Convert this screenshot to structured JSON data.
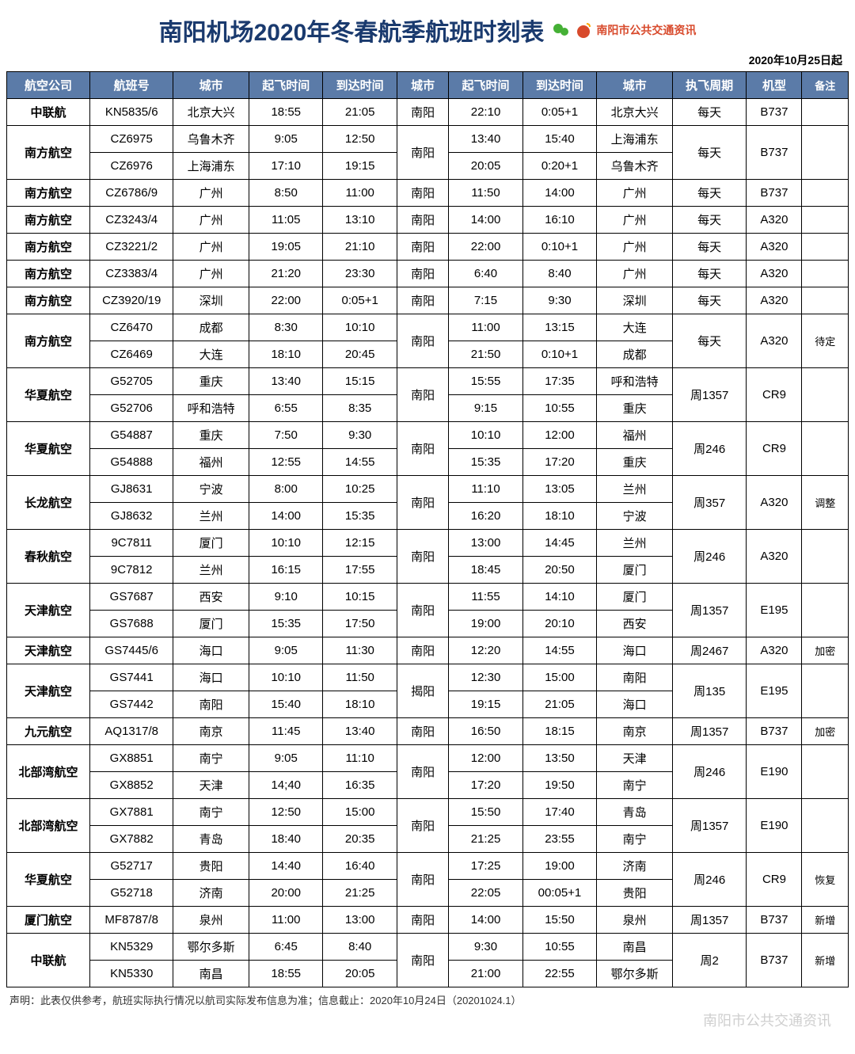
{
  "title": "南阳机场2020年冬春航季航班时刻表",
  "subtitle": "2020年10月25日起",
  "logo_text": "南阳市公共交通资讯",
  "footnote": "声明：此表仅供参考，航班实际执行情况以航司实际发布信息为准；信息截止：2020年10月24日（20201024.1）",
  "watermark": "南阳市公共交通资讯",
  "colors": {
    "header_bg": "#5b7ba8",
    "header_fg": "#ffffff",
    "title_fg": "#1a3a6e",
    "logo_fg": "#d84a2c",
    "border": "#000000"
  },
  "headers": [
    "航空公司",
    "航班号",
    "城市",
    "起飞时间",
    "到达时间",
    "城市",
    "起飞时间",
    "到达时间",
    "城市",
    "执飞周期",
    "机型",
    "备注"
  ],
  "groups": [
    {
      "airline": "中联航",
      "rows": [
        {
          "flight": "KN5835/6",
          "c1": "北京大兴",
          "d1": "18:55",
          "a1": "21:05",
          "d2": "22:10",
          "a2": "0:05+1",
          "c2": "北京大兴"
        }
      ],
      "hub": "南阳",
      "freq": "每天",
      "plane": "B737",
      "note": ""
    },
    {
      "airline": "南方航空",
      "rows": [
        {
          "flight": "CZ6975",
          "c1": "乌鲁木齐",
          "d1": "9:05",
          "a1": "12:50",
          "d2": "13:40",
          "a2": "15:40",
          "c2": "上海浦东"
        },
        {
          "flight": "CZ6976",
          "c1": "上海浦东",
          "d1": "17:10",
          "a1": "19:15",
          "d2": "20:05",
          "a2": "0:20+1",
          "c2": "乌鲁木齐"
        }
      ],
      "hub": "南阳",
      "freq": "每天",
      "plane": "B737",
      "note": ""
    },
    {
      "airline": "南方航空",
      "rows": [
        {
          "flight": "CZ6786/9",
          "c1": "广州",
          "d1": "8:50",
          "a1": "11:00",
          "d2": "11:50",
          "a2": "14:00",
          "c2": "广州"
        }
      ],
      "hub": "南阳",
      "freq": "每天",
      "plane": "B737",
      "note": ""
    },
    {
      "airline": "南方航空",
      "rows": [
        {
          "flight": "CZ3243/4",
          "c1": "广州",
          "d1": "11:05",
          "a1": "13:10",
          "d2": "14:00",
          "a2": "16:10",
          "c2": "广州"
        }
      ],
      "hub": "南阳",
      "freq": "每天",
      "plane": "A320",
      "note": ""
    },
    {
      "airline": "南方航空",
      "rows": [
        {
          "flight": "CZ3221/2",
          "c1": "广州",
          "d1": "19:05",
          "a1": "21:10",
          "d2": "22:00",
          "a2": "0:10+1",
          "c2": "广州"
        }
      ],
      "hub": "南阳",
      "freq": "每天",
      "plane": "A320",
      "note": ""
    },
    {
      "airline": "南方航空",
      "rows": [
        {
          "flight": "CZ3383/4",
          "c1": "广州",
          "d1": "21:20",
          "a1": "23:30",
          "d2": "6:40",
          "a2": "8:40",
          "c2": "广州"
        }
      ],
      "hub": "南阳",
      "freq": "每天",
      "plane": "A320",
      "note": ""
    },
    {
      "airline": "南方航空",
      "rows": [
        {
          "flight": "CZ3920/19",
          "c1": "深圳",
          "d1": "22:00",
          "a1": "0:05+1",
          "d2": "7:15",
          "a2": "9:30",
          "c2": "深圳"
        }
      ],
      "hub": "南阳",
      "freq": "每天",
      "plane": "A320",
      "note": ""
    },
    {
      "airline": "南方航空",
      "rows": [
        {
          "flight": "CZ6470",
          "c1": "成都",
          "d1": "8:30",
          "a1": "10:10",
          "d2": "11:00",
          "a2": "13:15",
          "c2": "大连"
        },
        {
          "flight": "CZ6469",
          "c1": "大连",
          "d1": "18:10",
          "a1": "20:45",
          "d2": "21:50",
          "a2": "0:10+1",
          "c2": "成都"
        }
      ],
      "hub": "南阳",
      "freq": "每天",
      "plane": "A320",
      "note": "待定"
    },
    {
      "airline": "华夏航空",
      "rows": [
        {
          "flight": "G52705",
          "c1": "重庆",
          "d1": "13:40",
          "a1": "15:15",
          "d2": "15:55",
          "a2": "17:35",
          "c2": "呼和浩特"
        },
        {
          "flight": "G52706",
          "c1": "呼和浩特",
          "d1": "6:55",
          "a1": "8:35",
          "d2": "9:15",
          "a2": "10:55",
          "c2": "重庆"
        }
      ],
      "hub": "南阳",
      "freq": "周1357",
      "plane": "CR9",
      "note": ""
    },
    {
      "airline": "华夏航空",
      "rows": [
        {
          "flight": "G54887",
          "c1": "重庆",
          "d1": "7:50",
          "a1": "9:30",
          "d2": "10:10",
          "a2": "12:00",
          "c2": "福州"
        },
        {
          "flight": "G54888",
          "c1": "福州",
          "d1": "12:55",
          "a1": "14:55",
          "d2": "15:35",
          "a2": "17:20",
          "c2": "重庆"
        }
      ],
      "hub": "南阳",
      "freq": "周246",
      "plane": "CR9",
      "note": ""
    },
    {
      "airline": "长龙航空",
      "rows": [
        {
          "flight": "GJ8631",
          "c1": "宁波",
          "d1": "8:00",
          "a1": "10:25",
          "d2": "11:10",
          "a2": "13:05",
          "c2": "兰州"
        },
        {
          "flight": "GJ8632",
          "c1": "兰州",
          "d1": "14:00",
          "a1": "15:35",
          "d2": "16:20",
          "a2": "18:10",
          "c2": "宁波"
        }
      ],
      "hub": "南阳",
      "freq": "周357",
      "plane": "A320",
      "note": "调整"
    },
    {
      "airline": "春秋航空",
      "rows": [
        {
          "flight": "9C7811",
          "c1": "厦门",
          "d1": "10:10",
          "a1": "12:15",
          "d2": "13:00",
          "a2": "14:45",
          "c2": "兰州"
        },
        {
          "flight": "9C7812",
          "c1": "兰州",
          "d1": "16:15",
          "a1": "17:55",
          "d2": "18:45",
          "a2": "20:50",
          "c2": "厦门"
        }
      ],
      "hub": "南阳",
      "freq": "周246",
      "plane": "A320",
      "note": ""
    },
    {
      "airline": "天津航空",
      "rows": [
        {
          "flight": "GS7687",
          "c1": "西安",
          "d1": "9:10",
          "a1": "10:15",
          "d2": "11:55",
          "a2": "14:10",
          "c2": "厦门"
        },
        {
          "flight": "GS7688",
          "c1": "厦门",
          "d1": "15:35",
          "a1": "17:50",
          "d2": "19:00",
          "a2": "20:10",
          "c2": "西安"
        }
      ],
      "hub": "南阳",
      "freq": "周1357",
      "plane": "E195",
      "note": ""
    },
    {
      "airline": "天津航空",
      "rows": [
        {
          "flight": "GS7445/6",
          "c1": "海口",
          "d1": "9:05",
          "a1": "11:30",
          "d2": "12:20",
          "a2": "14:55",
          "c2": "海口"
        }
      ],
      "hub": "南阳",
      "freq": "周2467",
      "plane": "A320",
      "note": "加密"
    },
    {
      "airline": "天津航空",
      "rows": [
        {
          "flight": "GS7441",
          "c1": "海口",
          "d1": "10:10",
          "a1": "11:50",
          "d2": "12:30",
          "a2": "15:00",
          "c2": "南阳"
        },
        {
          "flight": "GS7442",
          "c1": "南阳",
          "d1": "15:40",
          "a1": "18:10",
          "d2": "19:15",
          "a2": "21:05",
          "c2": "海口"
        }
      ],
      "hub": "揭阳",
      "freq": "周135",
      "plane": "E195",
      "note": ""
    },
    {
      "airline": "九元航空",
      "rows": [
        {
          "flight": "AQ1317/8",
          "c1": "南京",
          "d1": "11:45",
          "a1": "13:40",
          "d2": "16:50",
          "a2": "18:15",
          "c2": "南京"
        }
      ],
      "hub": "南阳",
      "freq": "周1357",
      "plane": "B737",
      "note": "加密"
    },
    {
      "airline": "北部湾航空",
      "rows": [
        {
          "flight": "GX8851",
          "c1": "南宁",
          "d1": "9:05",
          "a1": "11:10",
          "d2": "12:00",
          "a2": "13:50",
          "c2": "天津"
        },
        {
          "flight": "GX8852",
          "c1": "天津",
          "d1": "14;40",
          "a1": "16:35",
          "d2": "17:20",
          "a2": "19:50",
          "c2": "南宁"
        }
      ],
      "hub": "南阳",
      "freq": "周246",
      "plane": "E190",
      "note": ""
    },
    {
      "airline": "北部湾航空",
      "rows": [
        {
          "flight": "GX7881",
          "c1": "南宁",
          "d1": "12:50",
          "a1": "15:00",
          "d2": "15:50",
          "a2": "17:40",
          "c2": "青岛"
        },
        {
          "flight": "GX7882",
          "c1": "青岛",
          "d1": "18:40",
          "a1": "20:35",
          "d2": "21:25",
          "a2": "23:55",
          "c2": "南宁"
        }
      ],
      "hub": "南阳",
      "freq": "周1357",
      "plane": "E190",
      "note": ""
    },
    {
      "airline": "华夏航空",
      "rows": [
        {
          "flight": "G52717",
          "c1": "贵阳",
          "d1": "14:40",
          "a1": "16:40",
          "d2": "17:25",
          "a2": "19:00",
          "c2": "济南"
        },
        {
          "flight": "G52718",
          "c1": "济南",
          "d1": "20:00",
          "a1": "21:25",
          "d2": "22:05",
          "a2": "00:05+1",
          "c2": "贵阳"
        }
      ],
      "hub": "南阳",
      "freq": "周246",
      "plane": "CR9",
      "note": "恢复"
    },
    {
      "airline": "厦门航空",
      "rows": [
        {
          "flight": "MF8787/8",
          "c1": "泉州",
          "d1": "11:00",
          "a1": "13:00",
          "d2": "14:00",
          "a2": "15:50",
          "c2": "泉州"
        }
      ],
      "hub": "南阳",
      "freq": "周1357",
      "plane": "B737",
      "note": "新增"
    },
    {
      "airline": "中联航",
      "rows": [
        {
          "flight": "KN5329",
          "c1": "鄂尔多斯",
          "d1": "6:45",
          "a1": "8:40",
          "d2": "9:30",
          "a2": "10:55",
          "c2": "南昌"
        },
        {
          "flight": "KN5330",
          "c1": "南昌",
          "d1": "18:55",
          "a1": "20:05",
          "d2": "21:00",
          "a2": "22:55",
          "c2": "鄂尔多斯"
        }
      ],
      "hub": "南阳",
      "freq": "周2",
      "plane": "B737",
      "note": "新增"
    }
  ]
}
